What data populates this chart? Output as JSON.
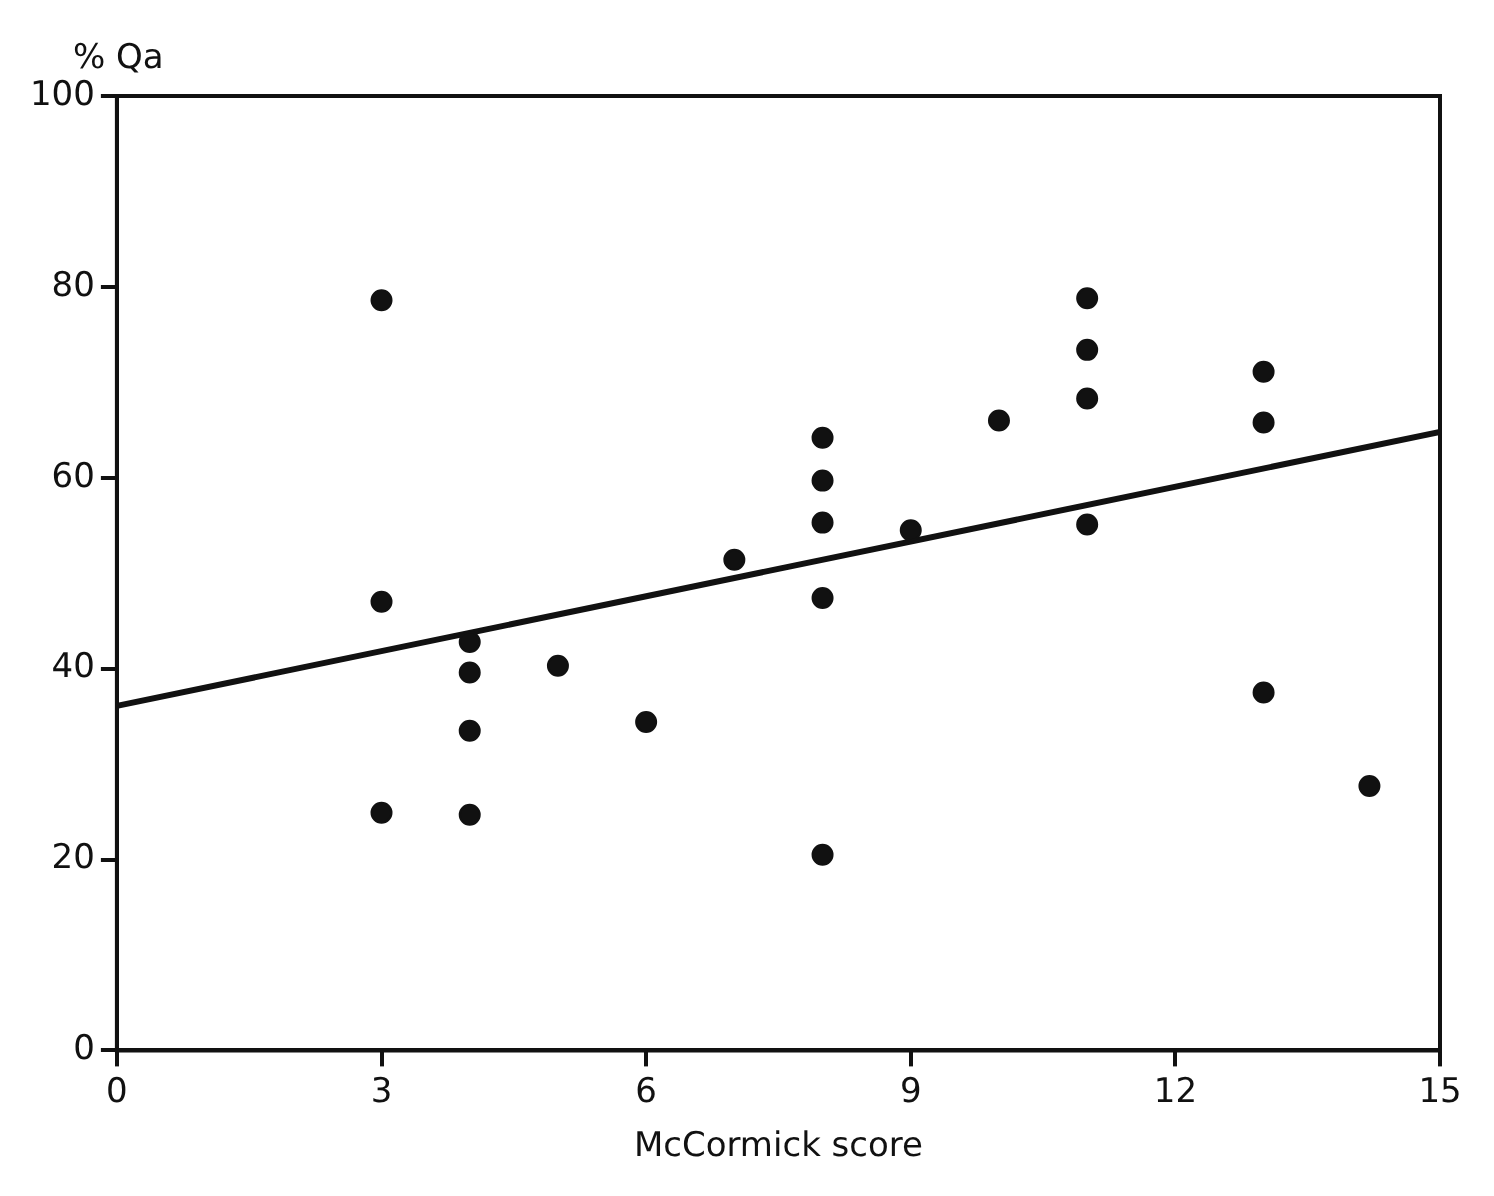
{
  "chart_data": {
    "type": "scatter",
    "xlabel": "McCormick score",
    "ylabel": "% Qa",
    "xlim": [
      0,
      15
    ],
    "xticks": [
      0,
      3,
      6,
      9,
      12,
      15
    ],
    "ylim": [
      0,
      100
    ],
    "yticks": [
      0,
      20,
      40,
      60,
      80,
      100
    ],
    "grid": false,
    "legend": false,
    "marker": "circle",
    "series": [
      {
        "type": "scatter",
        "color": "#111111",
        "x": [
          3,
          3,
          3,
          4,
          4,
          4,
          4,
          5,
          6,
          7,
          8,
          8,
          8,
          8,
          8,
          9,
          10,
          11,
          11,
          11,
          11,
          13,
          13,
          13,
          14.2
        ],
        "values": [
          78.6,
          47,
          24.9,
          42.8,
          39.6,
          33.5,
          24.7,
          40.3,
          34.4,
          51.4,
          64.2,
          59.7,
          55.3,
          47.4,
          20.5,
          54.5,
          66,
          78.8,
          73.4,
          68.3,
          55.1,
          71.1,
          65.8,
          37.5,
          27.7
        ]
      },
      {
        "type": "line",
        "color": "#111111",
        "x": [
          0,
          15
        ],
        "values": [
          36.1,
          64.8
        ],
        "marker": "none",
        "line_style": "solid"
      }
    ]
  }
}
